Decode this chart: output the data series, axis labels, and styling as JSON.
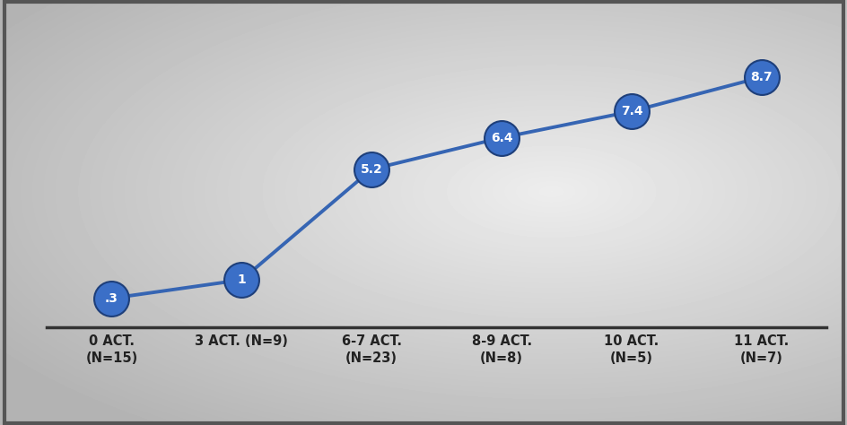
{
  "x_positions": [
    0,
    1,
    2,
    3,
    4,
    5
  ],
  "y_values": [
    0.3,
    1.0,
    5.2,
    6.4,
    7.4,
    8.7
  ],
  "labels": [
    "0 ACT.\n(N=15)",
    "3 ACT. (N=9)",
    "6-7 ACT.\n(N=23)",
    "8-9 ACT.\n(N=8)",
    "10 ACT.\n(N=5)",
    "11 ACT.\n(N=7)"
  ],
  "point_labels": [
    ".3",
    "1",
    "5.2",
    "6.4",
    "7.4",
    "8.7"
  ],
  "line_color": "#3665B3",
  "marker_color": "#3B6FC7",
  "marker_edge_color": "#1E3F7A",
  "text_color": "#FFFFFF",
  "line_width": 2.8,
  "marker_size": 28,
  "ylim": [
    -0.8,
    10.5
  ],
  "xlim": [
    -0.5,
    5.5
  ],
  "bg_dark": "#ABABAB",
  "bg_light": "#E8E8E8",
  "border_color": "#555555",
  "spine_color": "#333333",
  "tick_label_color": "#222222",
  "tick_fontsize": 10.5
}
